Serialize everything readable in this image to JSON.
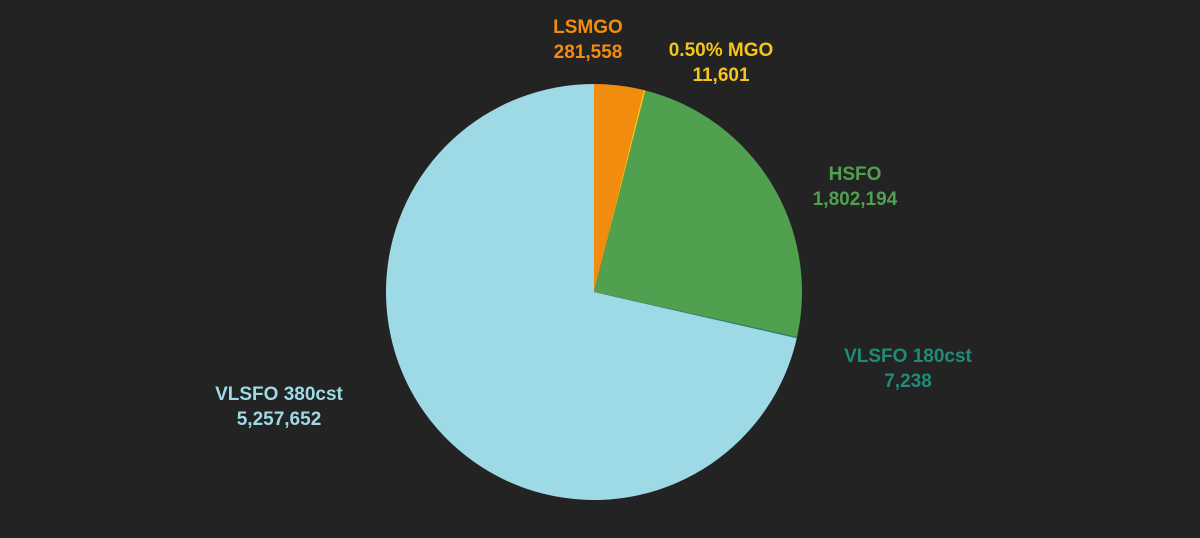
{
  "chart_data": {
    "type": "pie",
    "title": "",
    "start": "12 o'clock",
    "direction": "clockwise",
    "legend": "none",
    "slices": [
      {
        "name": "LSMGO",
        "value": 281558,
        "value_label": "281,558",
        "color": "#F28C0F"
      },
      {
        "name": "0.50% MGO",
        "value": 11601,
        "value_label": "11,601",
        "color": "#F5C518"
      },
      {
        "name": "HSFO",
        "value": 1802194,
        "value_label": "1,802,194",
        "color": "#50A050"
      },
      {
        "name": "VLSFO 180cst",
        "value": 7238,
        "value_label": "7,238",
        "color": "#1E8C78"
      },
      {
        "name": "VLSFO 380cst",
        "value": 5257652,
        "value_label": "5,257,652",
        "color": "#9ED9E6"
      }
    ]
  }
}
